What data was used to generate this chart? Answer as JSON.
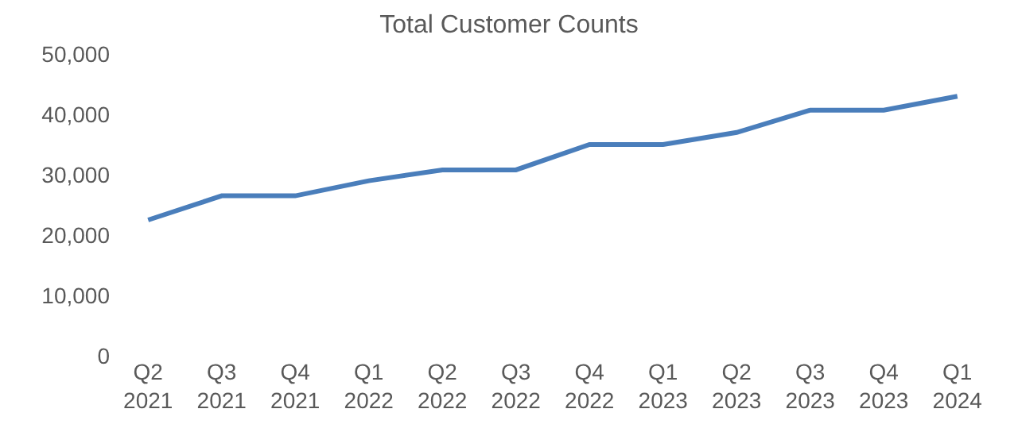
{
  "chart_data": {
    "type": "line",
    "title": "Total Customer Counts",
    "categories": [
      "Q2 2021",
      "Q3 2021",
      "Q4 2021",
      "Q1 2022",
      "Q2 2022",
      "Q3 2022",
      "Q4 2022",
      "Q1 2023",
      "Q2 2023",
      "Q3 2023",
      "Q4 2023",
      "Q1 2024"
    ],
    "series": [
      {
        "color": "#4a7ebb",
        "values": [
          22500,
          26500,
          26500,
          29000,
          30800,
          30800,
          35000,
          35000,
          37000,
          40700,
          40700,
          43000
        ]
      }
    ],
    "ylim": [
      0,
      50000
    ],
    "yticks": [
      {
        "value": 0,
        "label": "0"
      },
      {
        "value": 10000,
        "label": "10,000"
      },
      {
        "value": 20000,
        "label": "20,000"
      },
      {
        "value": 30000,
        "label": "30,000"
      },
      {
        "value": 40000,
        "label": "40,000"
      },
      {
        "value": 50000,
        "label": "50,000"
      }
    ],
    "marker": "none",
    "line_style": "solid"
  }
}
